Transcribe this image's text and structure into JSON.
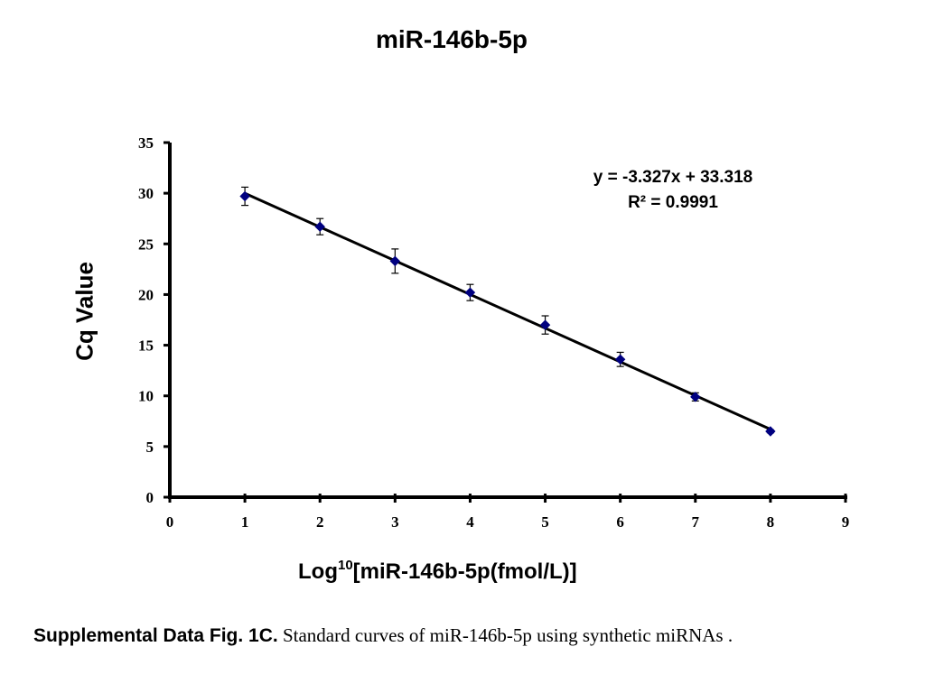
{
  "chart_data": {
    "type": "scatter",
    "title": "miR-146b-5p",
    "xlabel_main": "Log",
    "xlabel_sup": "10",
    "xlabel_rest": "[miR-146b-5p(fmol/L)]",
    "ylabel": "Cq Value",
    "xlim": [
      0,
      9
    ],
    "ylim": [
      0,
      35
    ],
    "xticks": [
      "0",
      "1",
      "2",
      "3",
      "4",
      "5",
      "6",
      "7",
      "8",
      "9"
    ],
    "yticks": [
      "0",
      "5",
      "10",
      "15",
      "20",
      "25",
      "30",
      "35"
    ],
    "series": [
      {
        "x": [
          1,
          2,
          3,
          4,
          5,
          6,
          7,
          8
        ],
        "y": [
          29.7,
          26.7,
          23.3,
          20.2,
          17.0,
          13.6,
          9.9,
          6.5
        ],
        "error": [
          0.9,
          0.8,
          1.2,
          0.8,
          0.9,
          0.7,
          0.4,
          0.15
        ],
        "color": "#000080"
      }
    ],
    "trendline": {
      "slope": -3.327,
      "intercept": 33.318,
      "color": "#000000"
    },
    "equation": "y = -3.327x + 33.318",
    "r_squared": "R² = 0.9991",
    "grid": false
  },
  "caption": {
    "label": "Supplemental Data Fig. 1C.",
    "text": " Standard curves of miR-146b-5p using synthetic miRNAs ."
  }
}
